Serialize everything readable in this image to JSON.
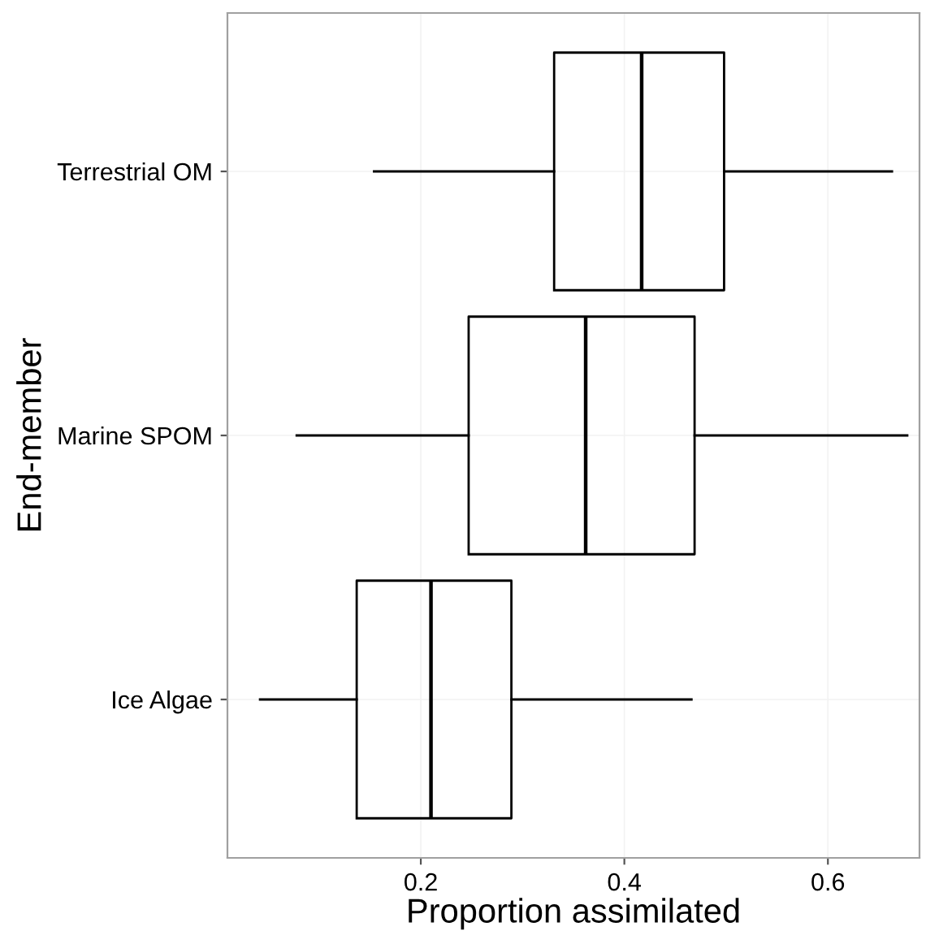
{
  "chart_data": {
    "type": "box",
    "orientation": "horizontal",
    "xlabel": "Proportion assimilated",
    "ylabel": "End-member",
    "categories": [
      "Terrestrial OM",
      "Marine SPOM",
      "Ice Algae"
    ],
    "boxes": [
      {
        "low": 0.154,
        "q1": 0.331,
        "median": 0.417,
        "q3": 0.498,
        "high": 0.663
      },
      {
        "low": 0.078,
        "q1": 0.247,
        "median": 0.362,
        "q3": 0.469,
        "high": 0.678
      },
      {
        "low": 0.042,
        "q1": 0.137,
        "median": 0.21,
        "q3": 0.289,
        "high": 0.466
      }
    ],
    "color": "#000000",
    "xlim": [
      0.01,
      0.69
    ],
    "xticks": [
      0.2,
      0.4,
      0.6
    ],
    "grid": true
  }
}
